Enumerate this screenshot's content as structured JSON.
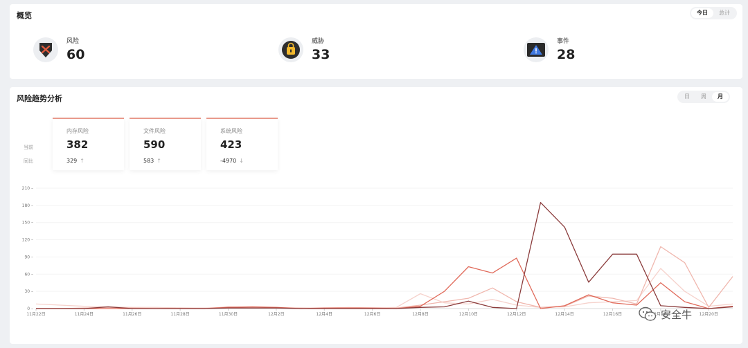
{
  "overview": {
    "title": "概览",
    "toggle": [
      {
        "label": "今日",
        "active": true
      },
      {
        "label": "总计",
        "active": false
      }
    ],
    "stats": [
      {
        "label": "风险",
        "value": "60",
        "icon": "shield-x-icon"
      },
      {
        "label": "威胁",
        "value": "33",
        "icon": "lock-icon"
      },
      {
        "label": "事件",
        "value": "28",
        "icon": "warning-icon"
      }
    ]
  },
  "trend": {
    "title": "风险趋势分析",
    "toggle": [
      {
        "label": "日",
        "active": false
      },
      {
        "label": "周",
        "active": false
      },
      {
        "label": "月",
        "active": true
      }
    ],
    "row_labels": {
      "current": "当前",
      "compare": "同比"
    },
    "kpis": [
      {
        "label": "内存风险",
        "value": "382",
        "compare": "329",
        "arrow": "↑"
      },
      {
        "label": "文件风险",
        "value": "590",
        "compare": "583",
        "arrow": "↑"
      },
      {
        "label": "系统风险",
        "value": "423",
        "compare": "-4970",
        "arrow": "↓"
      }
    ]
  },
  "colors": {
    "series_dark": "#8a3b3b",
    "series_red": "#e06a5a",
    "series_light": "#f0b7ae",
    "series_pale": "#f6d2cc",
    "kpi_accent": "#e99a8c"
  },
  "watermark": {
    "icon": "wechat-icon",
    "text": "安全牛"
  },
  "chart_data": {
    "type": "line",
    "x": [
      "11月22日",
      "11月23日",
      "11月24日",
      "11月25日",
      "11月26日",
      "11月27日",
      "11月28日",
      "11月29日",
      "11月30日",
      "12月1日",
      "12月2日",
      "12月3日",
      "12月4日",
      "12月5日",
      "12月6日",
      "12月7日",
      "12月8日",
      "12月9日",
      "12月10日",
      "12月11日",
      "12月12日",
      "12月13日",
      "12月14日",
      "12月15日",
      "12月16日",
      "12月17日",
      "12月18日",
      "12月19日",
      "12月20日",
      "12月21日"
    ],
    "xticks": [
      "11月22日",
      "11月24日",
      "11月26日",
      "11月28日",
      "11月30日",
      "12月2日",
      "12月4日",
      "12月6日",
      "12月8日",
      "12月10日",
      "12月12日",
      "12月14日",
      "12月16日",
      "12月18日",
      "12月20日"
    ],
    "yticks": [
      0,
      30,
      60,
      90,
      120,
      150,
      180,
      210
    ],
    "ylim": [
      0,
      210
    ],
    "series": [
      {
        "color": "#8a3b3b",
        "values": [
          0,
          0,
          0,
          3,
          0,
          0,
          0,
          0,
          1,
          1,
          1,
          0,
          0,
          0,
          0,
          0,
          2,
          3,
          13,
          2,
          0,
          185,
          142,
          46,
          95,
          95,
          5,
          2,
          0,
          3
        ]
      },
      {
        "color": "#e06a5a",
        "values": [
          0,
          0,
          0,
          0,
          0,
          0,
          0,
          0,
          2,
          3,
          2,
          0,
          1,
          1,
          1,
          0,
          4,
          30,
          73,
          62,
          88,
          0,
          5,
          24,
          10,
          6,
          45,
          12,
          0,
          4
        ]
      },
      {
        "color": "#f0b7ae",
        "values": [
          0,
          0,
          1,
          2,
          1,
          0,
          1,
          0,
          3,
          2,
          1,
          1,
          0,
          1,
          0,
          1,
          6,
          12,
          18,
          36,
          12,
          2,
          4,
          22,
          18,
          8,
          108,
          80,
          2,
          56
        ]
      },
      {
        "color": "#f6d2cc",
        "values": [
          8,
          6,
          4,
          3,
          2,
          2,
          1,
          1,
          2,
          2,
          2,
          1,
          1,
          2,
          1,
          2,
          26,
          10,
          8,
          16,
          6,
          2,
          3,
          10,
          12,
          14,
          70,
          30,
          4,
          8
        ]
      }
    ]
  }
}
